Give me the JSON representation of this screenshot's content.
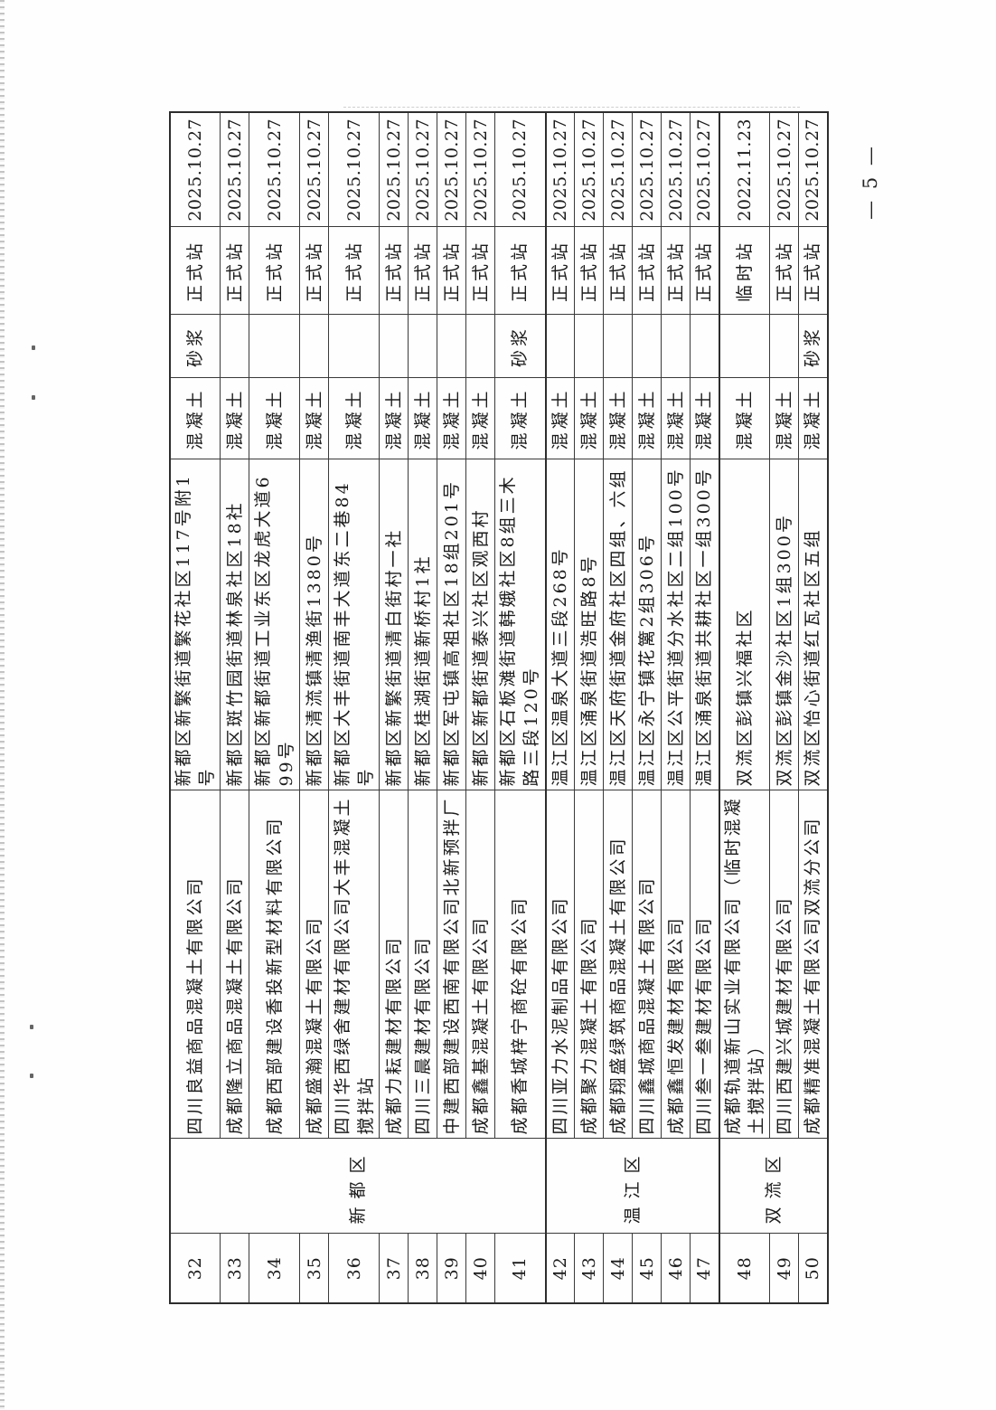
{
  "page": {
    "number_label": "— 5 —"
  },
  "table": {
    "districts": [
      {
        "name": "新都区",
        "span": 10
      },
      {
        "name": "温江区",
        "span": 6
      },
      {
        "name": "双流区",
        "span": 3
      }
    ],
    "rows": [
      {
        "no": "32",
        "company": "四川良益商品混凝土有限公司",
        "address": "新都区新繁街道繁花社区117号附1号",
        "concrete": "混凝土",
        "mortar": "砂浆",
        "station": "正式站",
        "date": "2025.10.27",
        "tall": false
      },
      {
        "no": "33",
        "company": "成都隆立商品混凝土有限公司",
        "address": "新都区斑竹园街道林泉社区18社",
        "concrete": "混凝土",
        "mortar": "",
        "station": "正式站",
        "date": "2025.10.27",
        "tall": false
      },
      {
        "no": "34",
        "company": "成都西部建设香投新型材料有限公司",
        "address": "新都区新都街道工业东区龙虎大道699号",
        "concrete": "混凝土",
        "mortar": "",
        "station": "正式站",
        "date": "2025.10.27",
        "tall": true
      },
      {
        "no": "35",
        "company": "成都盛瀚混凝土有限公司",
        "address": "新都区清流镇清渔街1380号",
        "concrete": "混凝土",
        "mortar": "",
        "station": "正式站",
        "date": "2025.10.27",
        "tall": false
      },
      {
        "no": "36",
        "company": "四川华西绿舍建材有限公司大丰混凝土搅拌站",
        "address": "新都区大丰街道南丰大道东二巷84号",
        "concrete": "混凝土",
        "mortar": "",
        "station": "正式站",
        "date": "2025.10.27",
        "tall": true
      },
      {
        "no": "37",
        "company": "成都力耘建材有限公司",
        "address": "新都区新繁街道清白街村一社",
        "concrete": "混凝土",
        "mortar": "",
        "station": "正式站",
        "date": "2025.10.27",
        "tall": false
      },
      {
        "no": "38",
        "company": "四川三晨建材有限公司",
        "address": "新都区桂湖街道新桥村1社",
        "concrete": "混凝土",
        "mortar": "",
        "station": "正式站",
        "date": "2025.10.27",
        "tall": false
      },
      {
        "no": "39",
        "company": "中建西部建设西南有限公司北新预拌厂",
        "address": "新都区军屯镇高祖社区18组201号",
        "concrete": "混凝土",
        "mortar": "",
        "station": "正式站",
        "date": "2025.10.27",
        "tall": false
      },
      {
        "no": "40",
        "company": "成都鑫基混凝土有限公司",
        "address": "新都区新都街道泰兴社区观西村",
        "concrete": "混凝土",
        "mortar": "",
        "station": "正式站",
        "date": "2025.10.27",
        "tall": false
      },
      {
        "no": "41",
        "company": "成都香城梓宁商砼有限公司",
        "address": "新都区石板滩街道韩娥社区8组三木路三段120号",
        "concrete": "混凝土",
        "mortar": "砂浆",
        "station": "正式站",
        "date": "2025.10.27",
        "tall": true
      },
      {
        "no": "42",
        "company": "四川亚力水泥制品有限公司",
        "address": "温江区温泉大道三段268号",
        "concrete": "混凝土",
        "mortar": "",
        "station": "正式站",
        "date": "2025.10.27",
        "tall": false
      },
      {
        "no": "43",
        "company": "成都聚力混凝土有限公司",
        "address": "温江区涌泉街道浩旺路8号",
        "concrete": "混凝土",
        "mortar": "",
        "station": "正式站",
        "date": "2025.10.27",
        "tall": false
      },
      {
        "no": "44",
        "company": "成都翔盛绿筑商品混凝土有限公司",
        "address": "温江区天府街道金府社区四组、六组",
        "concrete": "混凝土",
        "mortar": "",
        "station": "正式站",
        "date": "2025.10.27",
        "tall": false
      },
      {
        "no": "45",
        "company": "四川鑫城商品混凝土有限公司",
        "address": "温江区永宁镇花篱2组306号",
        "concrete": "混凝土",
        "mortar": "",
        "station": "正式站",
        "date": "2025.10.27",
        "tall": false
      },
      {
        "no": "46",
        "company": "成都鑫恒发建材有限公司",
        "address": "温江区公平街道分水社区二组100号",
        "concrete": "混凝土",
        "mortar": "",
        "station": "正式站",
        "date": "2025.10.27",
        "tall": false
      },
      {
        "no": "47",
        "company": "四川叁一叁建材有限公司",
        "address": "温江区涌泉街道共耕社区一组300号",
        "concrete": "混凝土",
        "mortar": "",
        "station": "正式站",
        "date": "2025.10.27",
        "tall": false
      },
      {
        "no": "48",
        "company": "成都轨道新山实业有限公司（临时混凝土搅拌站）",
        "address": "双流区彭镇兴福社区",
        "concrete": "混凝土",
        "mortar": "",
        "station": "临时站",
        "date": "2022.11.23",
        "tall": true
      },
      {
        "no": "49",
        "company": "四川西建兴城建材有限公司",
        "address": "双流区彭镇金沙社区1组300号",
        "concrete": "混凝土",
        "mortar": "",
        "station": "正式站",
        "date": "2025.10.27",
        "tall": false
      },
      {
        "no": "50",
        "company": "成都精准混凝土有限公司双流分公司",
        "address": "双流区怡心街道红瓦社区五组",
        "concrete": "混凝土",
        "mortar": "砂浆",
        "station": "正式站",
        "date": "2025.10.27",
        "tall": false
      }
    ]
  }
}
